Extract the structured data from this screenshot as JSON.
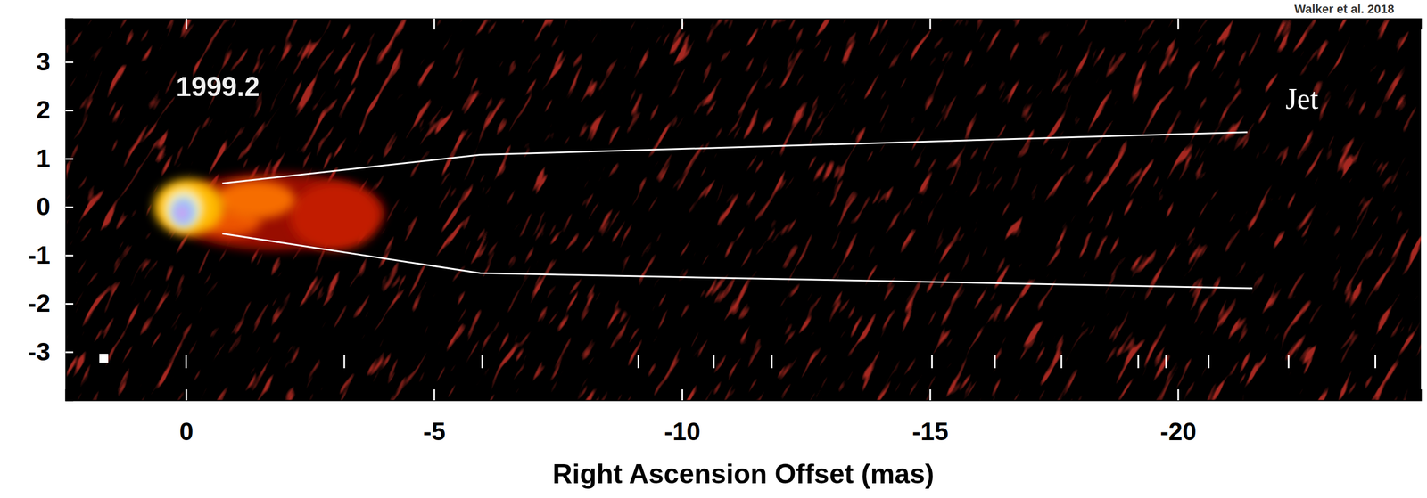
{
  "chart_data": {
    "type": "image",
    "credit": "Walker et al. 2018",
    "x_label": "Right Ascension Offset (mas)",
    "xlim": [
      2.43,
      -24.9
    ],
    "ylim": [
      -4,
      3.9
    ],
    "xticks": [
      0,
      -5,
      -10,
      -15,
      -20
    ],
    "yticks": [
      3,
      2,
      1,
      0,
      -1,
      -2,
      -3
    ],
    "epoch": {
      "text": "1999.2",
      "x": -0.64,
      "y": 2.45
    },
    "components": [
      {
        "x": -1.8,
        "y": -0.1,
        "rx": 2.2,
        "ry": 0.8,
        "intensity": 0.2
      },
      {
        "x": -3.0,
        "y": -0.2,
        "rx": 0.9,
        "ry": 0.7,
        "intensity": 0.27
      },
      {
        "x": -0.9,
        "y": -0.3,
        "rx": 0.6,
        "ry": 0.3,
        "intensity": 0.38
      },
      {
        "x": -1.4,
        "y": 0.15,
        "rx": 0.8,
        "ry": 0.4,
        "intensity": 0.42
      },
      {
        "x": -0.05,
        "y": 0.0,
        "rx": 0.7,
        "ry": 0.58,
        "intensity": 0.55
      },
      {
        "x": 0.05,
        "y": -0.02,
        "rx": 0.4,
        "ry": 0.42,
        "intensity": 0.72
      },
      {
        "x": 0.05,
        "y": -0.1,
        "rx": 0.25,
        "ry": 0.3,
        "intensity": 0.88
      },
      {
        "x": 0.08,
        "y": -0.12,
        "rx": 0.12,
        "ry": 0.16,
        "intensity": 1.0
      }
    ],
    "series": [
      {
        "color": "#ffffff",
        "x": [
          -0.73,
          -5.93,
          -21.4
        ],
        "values": [
          0.49,
          1.08,
          1.55
        ]
      },
      {
        "color": "#ffffff",
        "x": [
          -0.73,
          -5.93,
          -21.5
        ],
        "values": [
          -0.55,
          -1.37,
          -1.68
        ]
      }
    ],
    "annotations": [
      {
        "text": "Jet",
        "x": -22.5,
        "y": 2.18
      }
    ],
    "epoch_marks": {
      "x": [
        0,
        -3.19,
        -5.97,
        -9.12,
        -10.64,
        -11.81,
        -15.04,
        -16.31,
        -17.65,
        -19.2,
        -19.76,
        -20.62,
        -22.23,
        -23.98
      ],
      "y": -3.2
    },
    "beam": {
      "x": 1.66,
      "y": -3.13,
      "size": 0.18
    }
  }
}
